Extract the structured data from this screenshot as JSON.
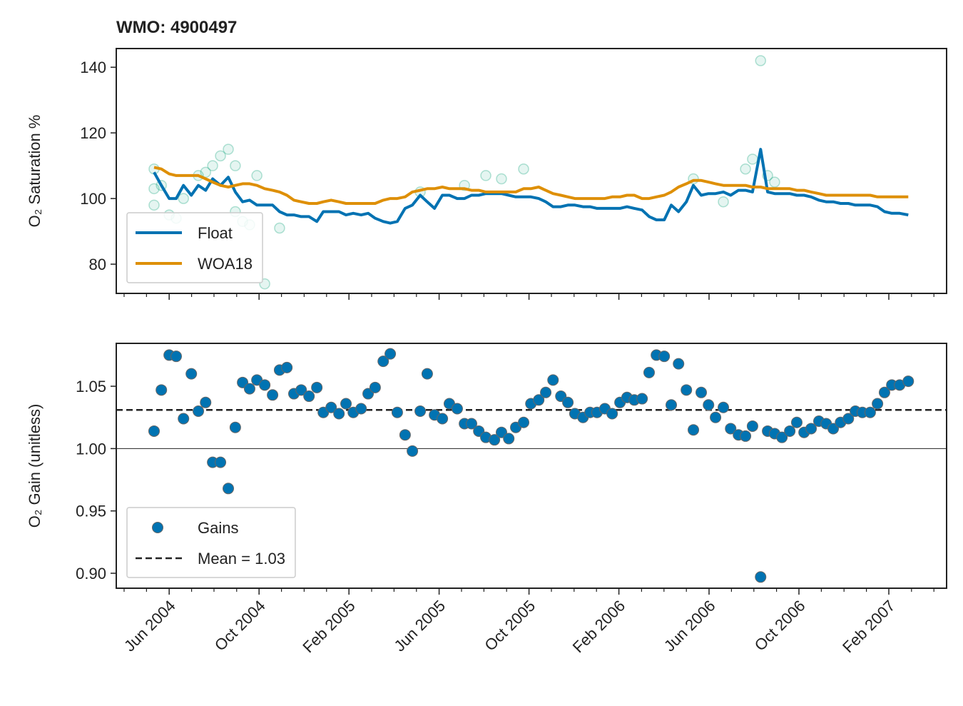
{
  "chart_data": [
    {
      "type": "line",
      "title": "WMO: 4900497",
      "ylabel": "O₂ Saturation %",
      "x": [
        2004.361,
        2004.388,
        2004.417,
        2004.443,
        2004.47,
        2004.499,
        2004.525,
        2004.552,
        2004.578,
        2004.607,
        2004.636,
        2004.662,
        2004.689,
        2004.715,
        2004.742,
        2004.771,
        2004.8,
        2004.826,
        2004.853,
        2004.879,
        2004.906,
        2004.935,
        2004.964,
        2004.988,
        2005.017,
        2005.046,
        2005.072,
        2005.099,
        2005.128,
        2005.154,
        2005.18,
        2005.21,
        2005.236,
        2005.262,
        2005.291,
        2005.318,
        2005.347,
        2005.373,
        2005.4,
        2005.429,
        2005.455,
        2005.484,
        2005.511,
        2005.537,
        2005.564,
        2005.59,
        2005.622,
        2005.648,
        2005.675,
        2005.701,
        2005.73,
        2005.757,
        2005.786,
        2005.812,
        2005.839,
        2005.868,
        2005.894,
        2005.92,
        2005.95,
        2005.976,
        2006.002,
        2006.031,
        2006.058,
        2006.087,
        2006.113,
        2006.14,
        2006.169,
        2006.195,
        2006.222,
        2006.251,
        2006.277,
        2006.304,
        2006.333,
        2006.359,
        2006.388,
        2006.415,
        2006.441,
        2006.47,
        2006.497,
        2006.526,
        2006.552,
        2006.578,
        2006.608,
        2006.634,
        2006.66,
        2006.687,
        2006.716,
        2006.742,
        2006.769,
        2006.795,
        2006.824,
        2006.851,
        2006.877,
        2006.904,
        2006.933,
        2006.959,
        2006.985,
        2007.014,
        2007.041,
        2007.067,
        2007.094,
        2007.123,
        2007.155
      ],
      "series": [
        {
          "name": "Float",
          "color": "#0072b2",
          "values": [
            108,
            104,
            100,
            100,
            104,
            101,
            104,
            102.5,
            106,
            104,
            106.5,
            102,
            99,
            99.5,
            98,
            98,
            98,
            96,
            95,
            95,
            94.5,
            94.5,
            93,
            96,
            96,
            96,
            95,
            95.5,
            95,
            95.5,
            94,
            93,
            92.5,
            93,
            97,
            98,
            101,
            99,
            97,
            101,
            101,
            100,
            100,
            101,
            101,
            101.5,
            101.5,
            101.5,
            101,
            100.5,
            100.5,
            100.5,
            100,
            99,
            97.5,
            97.5,
            98,
            98,
            97.5,
            97.5,
            97,
            97,
            97,
            97,
            97.5,
            97,
            96.5,
            94.5,
            93.5,
            93.5,
            98,
            96,
            99,
            104,
            101,
            101.5,
            101.5,
            102,
            101,
            102.5,
            102.5,
            102,
            115,
            102,
            101.5,
            101.5,
            101.5,
            101,
            101,
            100.5,
            99.5,
            99,
            99,
            98.5,
            98.5,
            98,
            98,
            98,
            97.5,
            96,
            95.5,
            95.5,
            95
          ]
        },
        {
          "name": "WOA18",
          "color": "#de8f05",
          "values": [
            109.5,
            109,
            107.5,
            107,
            107,
            107,
            107,
            106,
            105,
            104,
            103.5,
            104,
            104.5,
            104.5,
            104,
            103,
            102.5,
            102,
            101,
            99.5,
            99,
            98.5,
            98.5,
            99,
            99.5,
            99,
            98.5,
            98.5,
            98.5,
            98.5,
            98.5,
            99.5,
            100,
            100,
            100.5,
            102,
            102.5,
            103,
            103,
            103.5,
            103,
            103,
            103,
            102.5,
            102.5,
            102,
            102,
            102,
            102,
            102,
            103,
            103,
            103.5,
            102.5,
            101.5,
            101,
            100.5,
            100,
            100,
            100,
            100,
            100,
            100.5,
            100.5,
            101,
            101,
            100,
            100,
            100.5,
            101,
            102,
            103.5,
            104.5,
            105.5,
            105.5,
            105,
            104.5,
            104,
            104,
            104,
            104,
            103.5,
            103.5,
            103,
            103,
            103,
            103,
            102.5,
            102.5,
            102,
            101.5,
            101,
            101,
            101,
            101,
            101,
            101,
            101,
            100.5,
            100.5,
            100.5,
            100.5,
            100.5
          ]
        }
      ],
      "points": {
        "color": "#029e73",
        "x": [
          2004.361,
          2004.361,
          2004.361,
          2004.388,
          2004.417,
          2004.443,
          2004.47,
          2004.525,
          2004.552,
          2004.578,
          2004.607,
          2004.636,
          2004.662,
          2004.662,
          2004.689,
          2004.715,
          2004.742,
          2004.771,
          2004.826,
          2005.347,
          2005.511,
          2005.59,
          2005.648,
          2005.73,
          2006.359,
          2006.47,
          2006.552,
          2006.578,
          2006.608,
          2006.634,
          2006.66
        ],
        "y": [
          109,
          103,
          98,
          104,
          95,
          94,
          100,
          107,
          108,
          110,
          113,
          115,
          110,
          96,
          93,
          92,
          107,
          74,
          91,
          102,
          104,
          107,
          106,
          109,
          106,
          99,
          109,
          112,
          142,
          107,
          105
        ]
      },
      "xlim": [
        2004.221,
        2007.297
      ],
      "xticks": [
        2004.417,
        2004.75,
        2005.083,
        2005.417,
        2005.75,
        2006.083,
        2006.417,
        2006.75,
        2007.083
      ],
      "xminorticks": [
        2004.25,
        2004.333,
        2004.5,
        2004.583,
        2004.667,
        2004.833,
        2004.917,
        2005.0,
        2005.167,
        2005.25,
        2005.333,
        2005.5,
        2005.583,
        2005.667,
        2005.833,
        2005.917,
        2006.0,
        2006.167,
        2006.25,
        2006.333,
        2006.5,
        2006.583,
        2006.667,
        2006.833,
        2006.917,
        2007.0,
        2007.167,
        2007.25
      ],
      "ylim": [
        71.1,
        145.7
      ],
      "yticks": [
        80,
        100,
        120,
        140
      ],
      "legend": "lower left"
    },
    {
      "type": "scatter",
      "ylabel": "O₂ Gain (unitless)",
      "x": [
        2004.361,
        2004.388,
        2004.417,
        2004.443,
        2004.47,
        2004.499,
        2004.525,
        2004.552,
        2004.578,
        2004.607,
        2004.636,
        2004.662,
        2004.689,
        2004.715,
        2004.742,
        2004.771,
        2004.8,
        2004.826,
        2004.853,
        2004.879,
        2004.906,
        2004.935,
        2004.964,
        2004.988,
        2005.017,
        2005.046,
        2005.072,
        2005.099,
        2005.128,
        2005.154,
        2005.18,
        2005.21,
        2005.236,
        2005.262,
        2005.291,
        2005.318,
        2005.347,
        2005.373,
        2005.4,
        2005.429,
        2005.455,
        2005.484,
        2005.511,
        2005.537,
        2005.564,
        2005.59,
        2005.622,
        2005.648,
        2005.675,
        2005.701,
        2005.73,
        2005.757,
        2005.786,
        2005.812,
        2005.839,
        2005.868,
        2005.894,
        2005.92,
        2005.95,
        2005.976,
        2006.002,
        2006.031,
        2006.058,
        2006.087,
        2006.113,
        2006.14,
        2006.169,
        2006.195,
        2006.222,
        2006.251,
        2006.277,
        2006.304,
        2006.333,
        2006.359,
        2006.388,
        2006.415,
        2006.441,
        2006.47,
        2006.497,
        2006.526,
        2006.552,
        2006.578,
        2006.608,
        2006.634,
        2006.66,
        2006.687,
        2006.716,
        2006.742,
        2006.769,
        2006.795,
        2006.824,
        2006.851,
        2006.877,
        2006.904,
        2006.933,
        2006.959,
        2006.985,
        2007.014,
        2007.041,
        2007.067,
        2007.094,
        2007.123,
        2007.155
      ],
      "series": [
        {
          "name": "Gains",
          "color": "#0173b2",
          "values": [
            1.014,
            1.047,
            1.075,
            1.074,
            1.024,
            1.06,
            1.03,
            1.037,
            0.989,
            0.989,
            0.968,
            1.017,
            1.053,
            1.048,
            1.055,
            1.051,
            1.043,
            1.063,
            1.065,
            1.044,
            1.047,
            1.042,
            1.049,
            1.029,
            1.033,
            1.028,
            1.036,
            1.029,
            1.032,
            1.044,
            1.049,
            1.07,
            1.076,
            1.029,
            1.011,
            0.998,
            1.03,
            1.06,
            1.027,
            1.024,
            1.036,
            1.032,
            1.02,
            1.02,
            1.014,
            1.009,
            1.007,
            1.013,
            1.008,
            1.017,
            1.021,
            1.036,
            1.039,
            1.045,
            1.055,
            1.042,
            1.037,
            1.028,
            1.025,
            1.029,
            1.029,
            1.032,
            1.028,
            1.037,
            1.041,
            1.039,
            1.04,
            1.061,
            1.075,
            1.074,
            1.035,
            1.068,
            1.047,
            1.015,
            1.045,
            1.035,
            1.025,
            1.033,
            1.016,
            1.011,
            1.01,
            1.018,
            0.897,
            1.014,
            1.012,
            1.009,
            1.014,
            1.021,
            1.013,
            1.016,
            1.022,
            1.02,
            1.016,
            1.021,
            1.024,
            1.03,
            1.029,
            1.029,
            1.036,
            1.045,
            1.051,
            1.051,
            1.054
          ]
        }
      ],
      "mean": {
        "label": "Mean = 1.03",
        "value": 1.031,
        "color": "#222222"
      },
      "hline": 1,
      "xlim": [
        2004.221,
        2007.297
      ],
      "xticks": [
        {
          "value": 2004.417,
          "label": "Jun 2004"
        },
        {
          "value": 2004.75,
          "label": "Oct 2004"
        },
        {
          "value": 2005.083,
          "label": "Feb 2005"
        },
        {
          "value": 2005.417,
          "label": "Jun 2005"
        },
        {
          "value": 2005.75,
          "label": "Oct 2005"
        },
        {
          "value": 2006.083,
          "label": "Feb 2006"
        },
        {
          "value": 2006.417,
          "label": "Jun 2006"
        },
        {
          "value": 2006.75,
          "label": "Oct 2006"
        },
        {
          "value": 2007.083,
          "label": "Feb 2007"
        }
      ],
      "xminorticks": [
        2004.25,
        2004.333,
        2004.5,
        2004.583,
        2004.667,
        2004.833,
        2004.917,
        2005.0,
        2005.167,
        2005.25,
        2005.333,
        2005.5,
        2005.583,
        2005.667,
        2005.833,
        2005.917,
        2006.0,
        2006.167,
        2006.25,
        2006.333,
        2006.5,
        2006.583,
        2006.667,
        2006.833,
        2006.917,
        2007.0,
        2007.167,
        2007.25
      ],
      "ylim": [
        0.888,
        1.0844
      ],
      "yticks": [
        {
          "value": 0.9,
          "label": "0.90"
        },
        0.95,
        {
          "value": 1,
          "label": "1.00"
        },
        1.05
      ],
      "legend": "lower left"
    }
  ]
}
